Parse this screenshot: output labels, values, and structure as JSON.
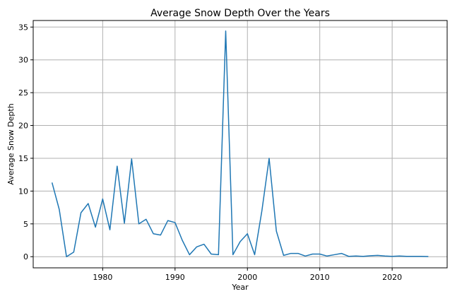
{
  "chart_data": {
    "type": "line",
    "title": "Average Snow Depth Over the Years",
    "xlabel": "Year",
    "ylabel": "Average Snow Depth",
    "xlim": [
      1970.4,
      2027.6
    ],
    "ylim": [
      -1.7,
      36.0
    ],
    "xticks": [
      1980,
      1990,
      2000,
      2010,
      2020
    ],
    "yticks": [
      0,
      5,
      10,
      15,
      20,
      25,
      30,
      35
    ],
    "grid": true,
    "colors": {
      "line": "#1f77b4",
      "grid": "#b0b0b0",
      "axes": "#000000"
    },
    "series": [
      {
        "x": [
          1973,
          1974,
          1975,
          1976,
          1977,
          1978,
          1979,
          1980,
          1981,
          1982,
          1983,
          1984,
          1985,
          1986,
          1987,
          1988,
          1989,
          1990,
          1991,
          1992,
          1993,
          1994,
          1995,
          1996,
          1997,
          1998,
          1999,
          2000,
          2001,
          2002,
          2003,
          2004,
          2005,
          2006,
          2007,
          2008,
          2009,
          2010,
          2011,
          2012,
          2013,
          2014,
          2015,
          2016,
          2017,
          2018,
          2019,
          2020,
          2021,
          2022,
          2023,
          2024,
          2025
        ],
        "values": [
          11.3,
          7.2,
          0.0,
          0.7,
          6.7,
          8.1,
          4.5,
          8.8,
          4.1,
          13.8,
          5.1,
          14.9,
          5.0,
          5.7,
          3.5,
          3.3,
          5.5,
          5.2,
          2.5,
          0.3,
          1.5,
          1.9,
          0.4,
          0.3,
          34.4,
          0.3,
          2.3,
          3.5,
          0.3,
          7.0,
          15.0,
          3.9,
          0.2,
          0.5,
          0.5,
          0.1,
          0.4,
          0.4,
          0.1,
          0.3,
          0.5,
          0.05,
          0.1,
          0.05,
          0.15,
          0.2,
          0.1,
          0.05,
          0.1,
          0.05,
          0.05,
          0.05,
          0.02
        ]
      }
    ]
  }
}
